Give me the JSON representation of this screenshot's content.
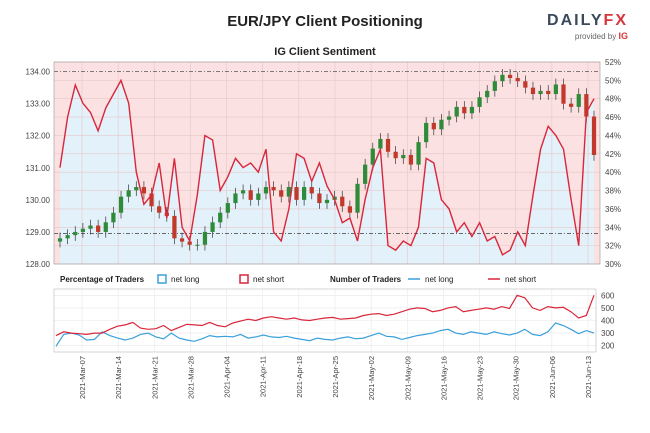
{
  "header": {
    "title": "EUR/JPY Client Positioning",
    "subtitle": "IG Client Sentiment",
    "logo_text_a": "DAILY",
    "logo_text_b": "FX",
    "logo_provided": "provided by",
    "logo_ig": "IG"
  },
  "legend": {
    "pct_title": "Percentage of Traders",
    "num_title": "Number of Traders",
    "net_long": "net long",
    "net_short": "net short"
  },
  "colors": {
    "net_long": "#3aa0dc",
    "net_short": "#d9263a",
    "bull_candle": "#2e8b3a",
    "bear_candle": "#c0392b",
    "short_zone": "#fbe1e1",
    "long_zone": "#e3f1fa"
  },
  "chart_data": [
    {
      "type": "candlestick-with-line",
      "title": "IG Client Sentiment",
      "y_left_ticks": [
        "128.00",
        "129.00",
        "130.00",
        "131.00",
        "132.00",
        "133.00",
        "134.00"
      ],
      "y_left_range": [
        128.0,
        134.3
      ],
      "y_right_ticks": [
        "30%",
        "32%",
        "34%",
        "36%",
        "38%",
        "40%",
        "42%",
        "44%",
        "46%",
        "48%",
        "50%",
        "52%"
      ],
      "y_right_range": [
        30,
        52
      ],
      "reference_lines": [
        134.0,
        128.95
      ],
      "x_labels": [
        "2021-Mar-07",
        "2021-Mar-14",
        "2021-Mar-21",
        "2021-Mar-28",
        "2021-Apr-04",
        "2021-Apr-11",
        "2021-Apr-18",
        "2021-Apr-25",
        "2021-May-02",
        "2021-May-09",
        "2021-May-16",
        "2021-May-23",
        "2021-May-30",
        "2021-Jun-06",
        "2021-Jun-13"
      ],
      "price_close": [
        128.8,
        128.9,
        129.0,
        129.1,
        129.2,
        129.0,
        129.3,
        129.6,
        130.1,
        130.3,
        130.4,
        130.2,
        129.8,
        129.6,
        129.5,
        128.8,
        128.7,
        128.6,
        128.6,
        129.0,
        129.3,
        129.6,
        129.9,
        130.2,
        130.3,
        130.0,
        130.2,
        130.4,
        130.3,
        130.1,
        130.4,
        130.0,
        130.4,
        130.2,
        129.9,
        130.0,
        130.1,
        129.8,
        129.6,
        130.5,
        131.1,
        131.6,
        131.9,
        131.5,
        131.3,
        131.4,
        131.1,
        131.8,
        132.4,
        132.2,
        132.5,
        132.6,
        132.9,
        132.7,
        132.9,
        133.2,
        133.4,
        133.7,
        133.9,
        133.8,
        133.7,
        133.5,
        133.3,
        133.4,
        133.3,
        133.6,
        133.0,
        132.9,
        133.3,
        132.6,
        131.4
      ],
      "net_long_pct": [
        40.5,
        46.0,
        49.5,
        47.5,
        46.5,
        44.5,
        47.0,
        48.5,
        50.0,
        47.5,
        40.0,
        36.5,
        37.5,
        41.0,
        35.0,
        41.5,
        34.0,
        32.5,
        37.5,
        44.0,
        43.5,
        38.0,
        39.5,
        41.5,
        40.5,
        41.0,
        40.0,
        42.5,
        33.5,
        32.5,
        36.0,
        42.0,
        41.5,
        39.0,
        41.0,
        38.5,
        37.0,
        34.5,
        35.0,
        32.5,
        37.0,
        40.5,
        42.5,
        32.0,
        31.5,
        32.5,
        32.0,
        34.0,
        41.5,
        41.0,
        37.0,
        36.0,
        33.5,
        34.5,
        33.0,
        34.5,
        32.5,
        33.0,
        31.0,
        31.5,
        33.5,
        32.0,
        37.5,
        42.5,
        45.0,
        44.0,
        42.5,
        37.0,
        32.0,
        46.5,
        48.0
      ],
      "net_long_pct_note": "line series read against right axis"
    },
    {
      "type": "line",
      "title": "Percentage / Number of Traders",
      "y_ticks": [
        "200",
        "300",
        "400",
        "500",
        "600"
      ],
      "y_range": [
        150,
        650
      ],
      "series": [
        {
          "name": "net long",
          "values": [
            195,
            290,
            300,
            285,
            245,
            250,
            310,
            280,
            260,
            245,
            260,
            290,
            300,
            270,
            255,
            300,
            260,
            245,
            235,
            255,
            280,
            270,
            275,
            270,
            290,
            260,
            270,
            285,
            270,
            265,
            275,
            260,
            250,
            240,
            260,
            250,
            245,
            260,
            270,
            255,
            260,
            280,
            300,
            275,
            270,
            250,
            265,
            280,
            290,
            300,
            320,
            330,
            300,
            290,
            310,
            300,
            290,
            310,
            295,
            285,
            300,
            330,
            290,
            280,
            310,
            380,
            360,
            330,
            295,
            320,
            300
          ]
        },
        {
          "name": "net short",
          "values": [
            280,
            310,
            300,
            295,
            290,
            300,
            300,
            330,
            355,
            365,
            385,
            340,
            330,
            335,
            360,
            320,
            345,
            370,
            365,
            360,
            385,
            360,
            350,
            380,
            395,
            410,
            400,
            420,
            430,
            420,
            410,
            420,
            405,
            400,
            410,
            420,
            425,
            410,
            415,
            420,
            440,
            450,
            455,
            440,
            450,
            470,
            490,
            500,
            495,
            470,
            480,
            500,
            510,
            470,
            480,
            490,
            500,
            490,
            510,
            495,
            600,
            580,
            500,
            480,
            510,
            500,
            505,
            470,
            420,
            440,
            600
          ]
        }
      ]
    }
  ]
}
